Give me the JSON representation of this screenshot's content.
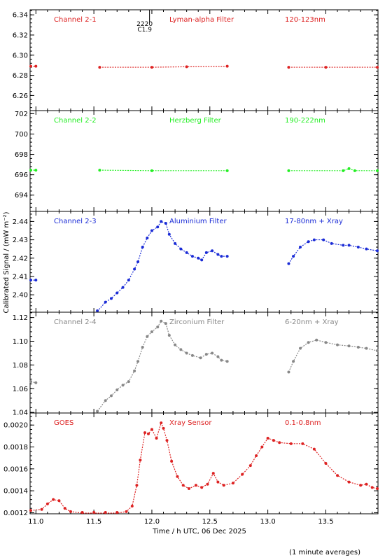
{
  "chart_data": {
    "type": "scatter",
    "xlabel": "Time / h UTC, 06 Dec 2025",
    "ylabel": "Calibrated Signal / (mW m⁻²)",
    "footnote": "(1 minute averages)",
    "xlim": [
      10.95,
      13.95
    ],
    "xticks": [
      "11.0",
      "11.5",
      "12.0",
      "12.5",
      "13.0",
      "13.5"
    ],
    "marker": "*",
    "flare_annotation": {
      "x": 11.98,
      "top_text": "2220",
      "bottom_text": "C1.9"
    },
    "panels": [
      {
        "channel": "Channel 2-1",
        "filter": "Lyman-alpha Filter",
        "band": "120-123nm",
        "color": "#dd2222",
        "ylim": [
          6.245,
          6.345
        ],
        "yticks": [
          "6.26",
          "6.28",
          "6.30",
          "6.32",
          "6.34"
        ],
        "segments": [
          [
            [
              10.95,
              6.289
            ],
            [
              11.0,
              6.289
            ]
          ],
          [
            [
              11.55,
              6.288
            ],
            [
              12.0,
              6.288
            ],
            [
              12.3,
              6.2885
            ],
            [
              12.65,
              6.289
            ]
          ],
          [
            [
              13.18,
              6.288
            ],
            [
              13.5,
              6.288
            ],
            [
              13.95,
              6.288
            ]
          ]
        ]
      },
      {
        "channel": "Channel 2-2",
        "filter": "Herzberg Filter",
        "band": "190-222nm",
        "color": "#22ee22",
        "ylim": [
          692.4,
          702.3
        ],
        "yticks": [
          "694",
          "696",
          "698",
          "700",
          "702"
        ],
        "segments": [
          [
            [
              10.95,
              696.45
            ],
            [
              11.0,
              696.45
            ]
          ],
          [
            [
              11.55,
              696.45
            ],
            [
              12.0,
              696.4
            ],
            [
              12.65,
              696.4
            ]
          ],
          [
            [
              13.18,
              696.4
            ],
            [
              13.65,
              696.4
            ],
            [
              13.7,
              696.6
            ],
            [
              13.75,
              696.4
            ],
            [
              13.95,
              696.4
            ]
          ]
        ]
      },
      {
        "channel": "Channel 2-3",
        "filter": "Aluminium Filter",
        "band": "17-80nm + Xray",
        "color": "#1a2bd6",
        "ylim": [
          2.3905,
          2.4455
        ],
        "yticks": [
          "2.40",
          "2.41",
          "2.42",
          "2.43",
          "2.44"
        ],
        "segments": [
          [
            [
              10.95,
              2.408
            ],
            [
              11.0,
              2.408
            ]
          ],
          [
            [
              11.53,
              2.391
            ],
            [
              11.6,
              2.396
            ],
            [
              11.65,
              2.398
            ],
            [
              11.7,
              2.401
            ],
            [
              11.75,
              2.404
            ],
            [
              11.8,
              2.408
            ],
            [
              11.85,
              2.414
            ],
            [
              11.88,
              2.418
            ],
            [
              11.92,
              2.426
            ],
            [
              11.96,
              2.431
            ],
            [
              12.0,
              2.435
            ],
            [
              12.05,
              2.437
            ],
            [
              12.08,
              2.44
            ],
            [
              12.12,
              2.439
            ],
            [
              12.15,
              2.433
            ],
            [
              12.2,
              2.428
            ],
            [
              12.25,
              2.425
            ],
            [
              12.3,
              2.423
            ],
            [
              12.35,
              2.421
            ],
            [
              12.4,
              2.42
            ],
            [
              12.43,
              2.419
            ],
            [
              12.47,
              2.423
            ],
            [
              12.52,
              2.424
            ],
            [
              12.57,
              2.422
            ],
            [
              12.6,
              2.421
            ],
            [
              12.65,
              2.421
            ]
          ],
          [
            [
              13.18,
              2.417
            ],
            [
              13.22,
              2.421
            ],
            [
              13.28,
              2.426
            ],
            [
              13.35,
              2.429
            ],
            [
              13.4,
              2.43
            ],
            [
              13.48,
              2.43
            ],
            [
              13.55,
              2.428
            ],
            [
              13.65,
              2.427
            ],
            [
              13.7,
              2.427
            ],
            [
              13.78,
              2.426
            ],
            [
              13.85,
              2.425
            ],
            [
              13.95,
              2.424
            ]
          ]
        ]
      },
      {
        "channel": "Channel 2-4",
        "filter": "Zirconium Filter",
        "band": "6-20nm + Xray",
        "color": "#888888",
        "ylim": [
          1.0395,
          1.1245
        ],
        "yticks": [
          "1.04",
          "1.06",
          "1.08",
          "1.10",
          "1.12"
        ],
        "segments": [
          [
            [
              10.95,
              1.066
            ],
            [
              11.0,
              1.065
            ]
          ],
          [
            [
              11.53,
              1.041
            ],
            [
              11.6,
              1.05
            ],
            [
              11.65,
              1.054
            ],
            [
              11.7,
              1.059
            ],
            [
              11.75,
              1.063
            ],
            [
              11.8,
              1.066
            ],
            [
              11.85,
              1.075
            ],
            [
              11.88,
              1.083
            ],
            [
              11.92,
              1.095
            ],
            [
              11.96,
              1.104
            ],
            [
              12.0,
              1.108
            ],
            [
              12.05,
              1.112
            ],
            [
              12.08,
              1.117
            ],
            [
              12.12,
              1.115
            ],
            [
              12.15,
              1.105
            ],
            [
              12.2,
              1.097
            ],
            [
              12.25,
              1.093
            ],
            [
              12.3,
              1.09
            ],
            [
              12.35,
              1.088
            ],
            [
              12.42,
              1.086
            ],
            [
              12.47,
              1.089
            ],
            [
              12.52,
              1.09
            ],
            [
              12.57,
              1.087
            ],
            [
              12.6,
              1.084
            ],
            [
              12.65,
              1.083
            ]
          ],
          [
            [
              13.18,
              1.074
            ],
            [
              13.22,
              1.083
            ],
            [
              13.28,
              1.094
            ],
            [
              13.35,
              1.099
            ],
            [
              13.42,
              1.101
            ],
            [
              13.5,
              1.099
            ],
            [
              13.6,
              1.097
            ],
            [
              13.7,
              1.096
            ],
            [
              13.78,
              1.095
            ],
            [
              13.85,
              1.094
            ],
            [
              13.95,
              1.092
            ]
          ]
        ]
      },
      {
        "channel": "GOES",
        "filter": "Xray Sensor",
        "band": "0.1-0.8nm",
        "color": "#dd2222",
        "ylim": [
          0.00119,
          0.00211
        ],
        "yticks": [
          "0.0012",
          "0.0014",
          "0.0016",
          "0.0018",
          "0.0020"
        ],
        "segments": [
          [
            [
              10.95,
              0.00122
            ],
            [
              11.05,
              0.00123
            ],
            [
              11.1,
              0.00128
            ],
            [
              11.15,
              0.00132
            ],
            [
              11.2,
              0.00131
            ],
            [
              11.25,
              0.00124
            ],
            [
              11.3,
              0.00121
            ],
            [
              11.4,
              0.00119
            ],
            [
              11.5,
              0.00118
            ],
            [
              11.6,
              0.00118
            ],
            [
              11.7,
              0.00119
            ],
            [
              11.78,
              0.00121
            ],
            [
              11.83,
              0.00126
            ],
            [
              11.87,
              0.00145
            ],
            [
              11.9,
              0.00168
            ],
            [
              11.94,
              0.00193
            ],
            [
              11.97,
              0.00192
            ],
            [
              12.0,
              0.00196
            ],
            [
              12.04,
              0.00188
            ],
            [
              12.08,
              0.00202
            ],
            [
              12.1,
              0.00197
            ],
            [
              12.13,
              0.00186
            ],
            [
              12.17,
              0.00167
            ],
            [
              12.22,
              0.00153
            ],
            [
              12.27,
              0.00145
            ],
            [
              12.32,
              0.00142
            ],
            [
              12.38,
              0.00145
            ],
            [
              12.43,
              0.00143
            ],
            [
              12.48,
              0.00146
            ],
            [
              12.53,
              0.00156
            ],
            [
              12.57,
              0.00148
            ],
            [
              12.62,
              0.00145
            ],
            [
              12.7,
              0.00147
            ],
            [
              12.78,
              0.00155
            ],
            [
              12.85,
              0.00163
            ],
            [
              12.9,
              0.00172
            ],
            [
              12.95,
              0.0018
            ],
            [
              13.0,
              0.00188
            ],
            [
              13.05,
              0.00186
            ],
            [
              13.1,
              0.00184
            ],
            [
              13.2,
              0.00183
            ],
            [
              13.3,
              0.00183
            ],
            [
              13.4,
              0.00178
            ],
            [
              13.5,
              0.00165
            ],
            [
              13.6,
              0.00154
            ],
            [
              13.7,
              0.00148
            ],
            [
              13.8,
              0.00145
            ],
            [
              13.85,
              0.00146
            ],
            [
              13.9,
              0.00143
            ],
            [
              13.95,
              0.00142
            ]
          ]
        ]
      }
    ]
  }
}
